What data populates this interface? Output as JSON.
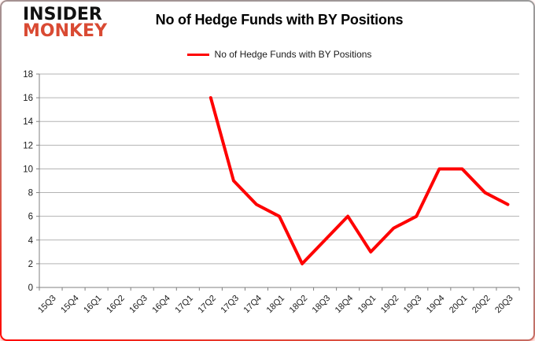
{
  "logo": {
    "line1": "INSIDER",
    "line2": "MONKEY"
  },
  "header": {
    "title": "No of Hedge Funds with BY Positions"
  },
  "legend": {
    "label": "No of Hedge Funds with BY Positions"
  },
  "colors": {
    "line_red": "#fe0000",
    "logo_red": "#d94a33",
    "gridline": "#b3b3b3",
    "axis": "#808080",
    "tick_text": "#1a1a1a",
    "title_text": "#000000"
  },
  "chart_data": {
    "type": "line",
    "title": "No of Hedge Funds with BY Positions",
    "xlabel": "",
    "ylabel": "",
    "ylim": [
      0,
      18
    ],
    "y_step": 2,
    "y_ticks": [
      0,
      2,
      4,
      6,
      8,
      10,
      12,
      14,
      16,
      18
    ],
    "grid": true,
    "legend_position": "top",
    "categories": [
      "15Q3",
      "15Q4",
      "16Q1",
      "16Q2",
      "16Q3",
      "16Q4",
      "17Q1",
      "17Q2",
      "17Q3",
      "17Q4",
      "18Q1",
      "18Q2",
      "18Q3",
      "18Q4",
      "19Q1",
      "19Q2",
      "19Q3",
      "19Q4",
      "20Q1",
      "20Q2",
      "20Q3"
    ],
    "series": [
      {
        "name": "No of Hedge Funds with BY Positions",
        "color": "#fe0000",
        "values": [
          null,
          null,
          null,
          null,
          null,
          null,
          null,
          16,
          9,
          7,
          6,
          2,
          4,
          6,
          3,
          5,
          6,
          10,
          10,
          8,
          7
        ]
      }
    ]
  }
}
